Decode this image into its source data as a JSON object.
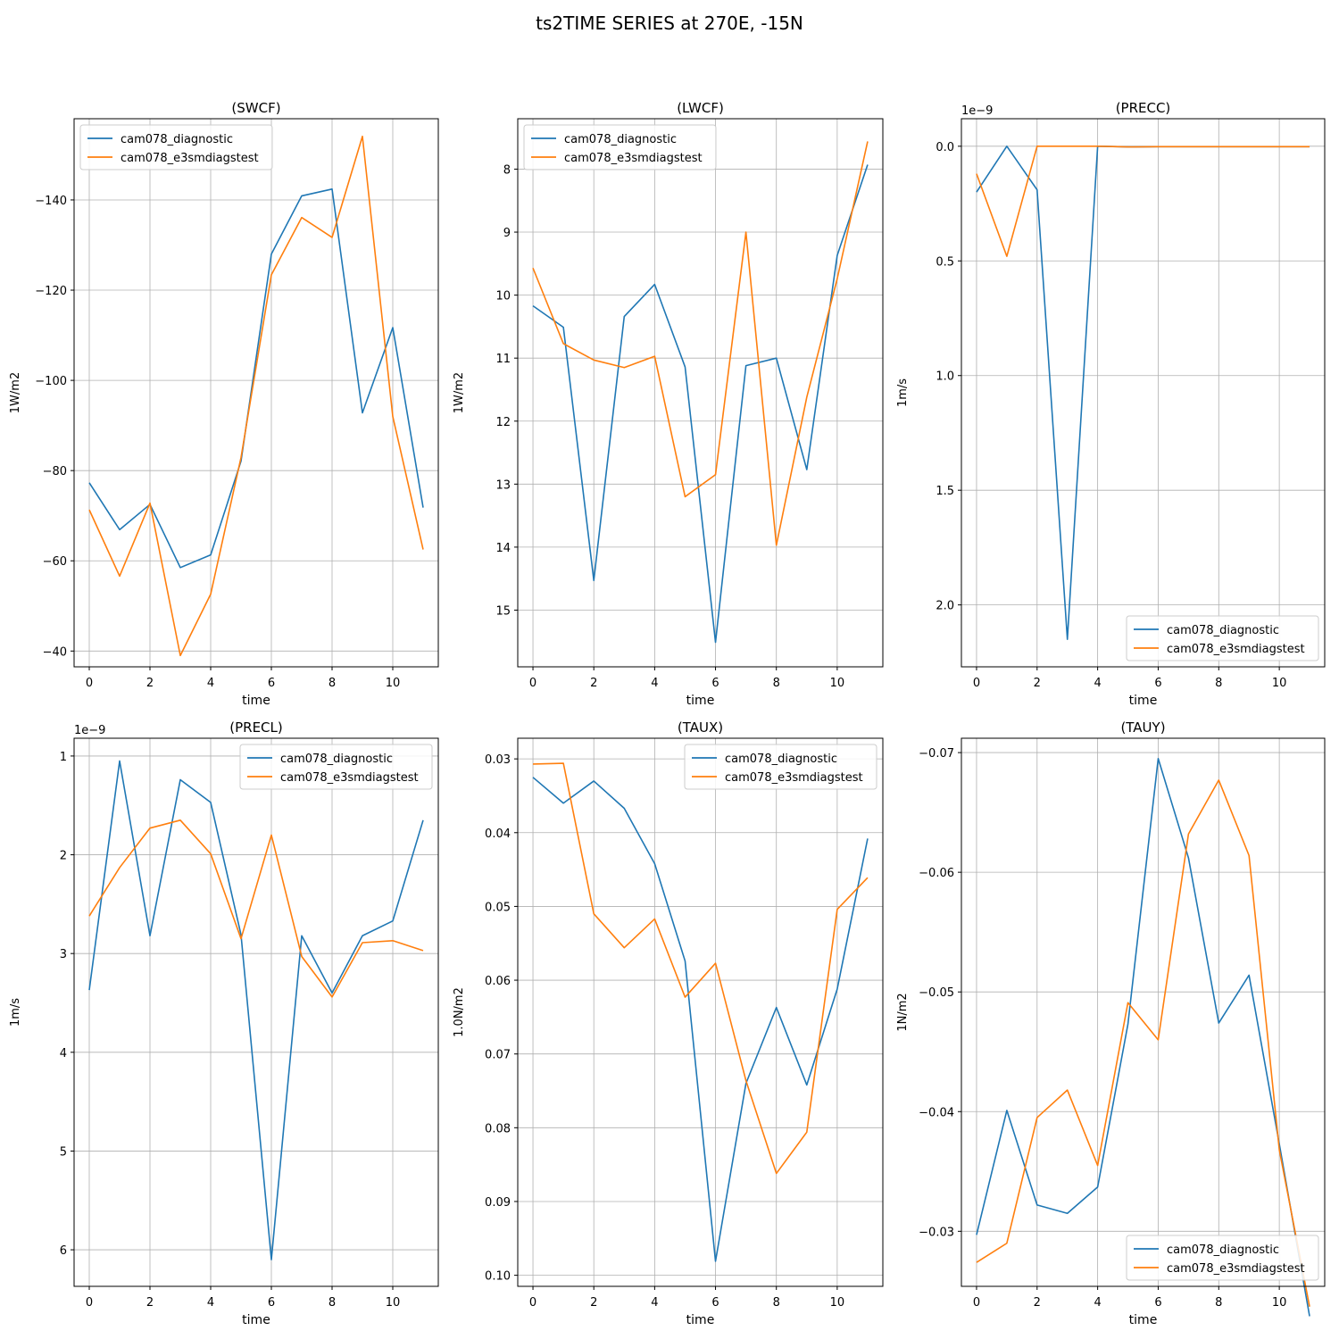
{
  "figure": {
    "title": "ts2TIME SERIES at 270E, -15N"
  },
  "colors": {
    "series_0": "#1f77b4",
    "series_1": "#ff7f0e",
    "grid": "#b0b0b0",
    "axes": "#000000"
  },
  "chart_data": [
    {
      "type": "line",
      "title": "(SWCF)",
      "xlabel": "time",
      "ylabel": "1W/m2",
      "xlim": [
        -0.5,
        11.5
      ],
      "ylim": [
        -36.5,
        -158
      ],
      "xticks": [
        0,
        2,
        4,
        6,
        8,
        10
      ],
      "yticks": [
        -40,
        -60,
        -80,
        -100,
        -120,
        -140
      ],
      "ytick_labels": [
        "−40",
        "−60",
        "−80",
        "−100",
        "−120",
        "−140"
      ],
      "offset_label": "",
      "grid": true,
      "legend_loc": "upper-left",
      "x": [
        0,
        1,
        2,
        3,
        4,
        5,
        6,
        7,
        8,
        9,
        10,
        11
      ],
      "series": [
        {
          "name": "cam078_diagnostic",
          "values": [
            -77.3,
            -66.9,
            -72.5,
            -58.5,
            -61.3,
            -82.1,
            -128.0,
            -140.9,
            -142.4,
            -92.8,
            -111.7,
            -71.8
          ]
        },
        {
          "name": "cam078_e3smdiagstest",
          "values": [
            -71.3,
            -56.6,
            -72.8,
            -39.0,
            -52.6,
            -82.9,
            -123.4,
            -136.1,
            -131.7,
            -154.1,
            -92.0,
            -62.5
          ]
        }
      ]
    },
    {
      "type": "line",
      "title": "(LWCF)",
      "xlabel": "time",
      "ylabel": "1W/m2",
      "xlim": [
        -0.5,
        11.5
      ],
      "ylim": [
        15.9,
        7.2
      ],
      "xticks": [
        0,
        2,
        4,
        6,
        8,
        10
      ],
      "yticks": [
        8,
        9,
        10,
        11,
        12,
        13,
        14,
        15
      ],
      "ytick_labels": [
        "8",
        "9",
        "10",
        "11",
        "12",
        "13",
        "14",
        "15"
      ],
      "offset_label": "",
      "grid": true,
      "legend_loc": "upper-left",
      "x": [
        0,
        1,
        2,
        3,
        4,
        5,
        6,
        7,
        8,
        9,
        10,
        11
      ],
      "series": [
        {
          "name": "cam078_diagnostic",
          "values": [
            10.17,
            10.51,
            14.53,
            10.34,
            9.83,
            11.14,
            15.51,
            11.12,
            11.0,
            12.77,
            9.37,
            7.93
          ]
        },
        {
          "name": "cam078_e3smdiagstest",
          "values": [
            9.57,
            10.77,
            11.03,
            11.15,
            10.97,
            13.2,
            12.85,
            9.0,
            13.97,
            11.62,
            9.74,
            7.56
          ]
        }
      ]
    },
    {
      "type": "line",
      "title": "(PRECC)",
      "xlabel": "time",
      "ylabel": "1m/s",
      "xlim": [
        -0.5,
        11.5
      ],
      "ylim": [
        2.27,
        -0.12
      ],
      "xticks": [
        0,
        2,
        4,
        6,
        8,
        10
      ],
      "yticks": [
        0.0,
        0.5,
        1.0,
        1.5,
        2.0
      ],
      "ytick_labels": [
        "0.0",
        "0.5",
        "1.0",
        "1.5",
        "2.0"
      ],
      "offset_label": "1e−9",
      "grid": true,
      "legend_loc": "lower-right",
      "x": [
        0,
        1,
        2,
        3,
        4,
        5,
        6,
        7,
        8,
        9,
        10,
        11
      ],
      "series": [
        {
          "name": "cam078_diagnostic",
          "values": [
            0.2,
            0.0,
            0.19,
            2.15,
            0.0,
            0.003,
            0.002,
            0.002,
            0.002,
            0.002,
            0.002,
            0.002
          ]
        },
        {
          "name": "cam078_e3smdiagstest",
          "values": [
            0.12,
            0.48,
            0.0,
            0.0,
            0.0,
            0.003,
            0.002,
            0.002,
            0.002,
            0.002,
            0.002,
            0.002
          ]
        }
      ]
    },
    {
      "type": "line",
      "title": "(PRECL)",
      "xlabel": "time",
      "ylabel": "1m/s",
      "xlim": [
        -0.5,
        11.5
      ],
      "ylim": [
        6.37,
        0.82
      ],
      "xticks": [
        0,
        2,
        4,
        6,
        8,
        10
      ],
      "yticks": [
        1,
        2,
        3,
        4,
        5,
        6
      ],
      "ytick_labels": [
        "1",
        "2",
        "3",
        "4",
        "5",
        "6"
      ],
      "offset_label": "1e−9",
      "grid": true,
      "legend_loc": "upper-right",
      "x": [
        0,
        1,
        2,
        3,
        4,
        5,
        6,
        7,
        8,
        9,
        10,
        11
      ],
      "series": [
        {
          "name": "cam078_diagnostic",
          "values": [
            3.37,
            1.05,
            2.82,
            1.24,
            1.47,
            2.81,
            6.1,
            2.82,
            3.4,
            2.82,
            2.67,
            1.65
          ]
        },
        {
          "name": "cam078_e3smdiagstest",
          "values": [
            2.62,
            2.13,
            1.73,
            1.65,
            1.99,
            2.85,
            1.8,
            3.03,
            3.44,
            2.89,
            2.87,
            2.97
          ]
        }
      ]
    },
    {
      "type": "line",
      "title": "(TAUX)",
      "xlabel": "time",
      "ylabel": "1.0N/m2",
      "xlim": [
        -0.5,
        11.5
      ],
      "ylim": [
        0.1015,
        0.0272
      ],
      "xticks": [
        0,
        2,
        4,
        6,
        8,
        10
      ],
      "yticks": [
        0.03,
        0.04,
        0.05,
        0.06,
        0.07,
        0.08,
        0.09,
        0.1
      ],
      "ytick_labels": [
        "0.03",
        "0.04",
        "0.05",
        "0.06",
        "0.07",
        "0.08",
        "0.09",
        "0.10"
      ],
      "offset_label": "",
      "grid": true,
      "legend_loc": "upper-right",
      "x": [
        0,
        1,
        2,
        3,
        4,
        5,
        6,
        7,
        8,
        9,
        10,
        11
      ],
      "series": [
        {
          "name": "cam078_diagnostic",
          "values": [
            0.0325,
            0.036,
            0.033,
            0.0367,
            0.0442,
            0.0574,
            0.0981,
            0.074,
            0.0637,
            0.0742,
            0.0612,
            0.0408
          ]
        },
        {
          "name": "cam078_e3smdiagstest",
          "values": [
            0.0307,
            0.0306,
            0.051,
            0.0556,
            0.0517,
            0.0623,
            0.0577,
            0.0736,
            0.0862,
            0.0806,
            0.0504,
            0.0461
          ]
        }
      ]
    },
    {
      "type": "line",
      "title": "(TAUY)",
      "xlabel": "time",
      "ylabel": "1N/m2",
      "xlim": [
        -0.5,
        11.5
      ],
      "ylim": [
        -0.0254,
        -0.0712
      ],
      "xticks": [
        0,
        2,
        4,
        6,
        8,
        10
      ],
      "yticks": [
        -0.03,
        -0.04,
        -0.05,
        -0.06,
        -0.07
      ],
      "ytick_labels": [
        "−0.03",
        "−0.04",
        "−0.05",
        "−0.06",
        "−0.07"
      ],
      "offset_label": "",
      "grid": true,
      "legend_loc": "lower-right",
      "x": [
        0,
        1,
        2,
        3,
        4,
        5,
        6,
        7,
        8,
        9,
        10,
        11
      ],
      "series": [
        {
          "name": "cam078_diagnostic",
          "values": [
            -0.0297,
            -0.0401,
            -0.0322,
            -0.0315,
            -0.0337,
            -0.0473,
            -0.0695,
            -0.0612,
            -0.0474,
            -0.0514,
            -0.0373,
            -0.0229
          ]
        },
        {
          "name": "cam078_e3smdiagstest",
          "values": [
            -0.0274,
            -0.029,
            -0.0395,
            -0.0418,
            -0.0355,
            -0.0491,
            -0.046,
            -0.0632,
            -0.0677,
            -0.0614,
            -0.0368,
            -0.0237
          ]
        }
      ]
    }
  ]
}
